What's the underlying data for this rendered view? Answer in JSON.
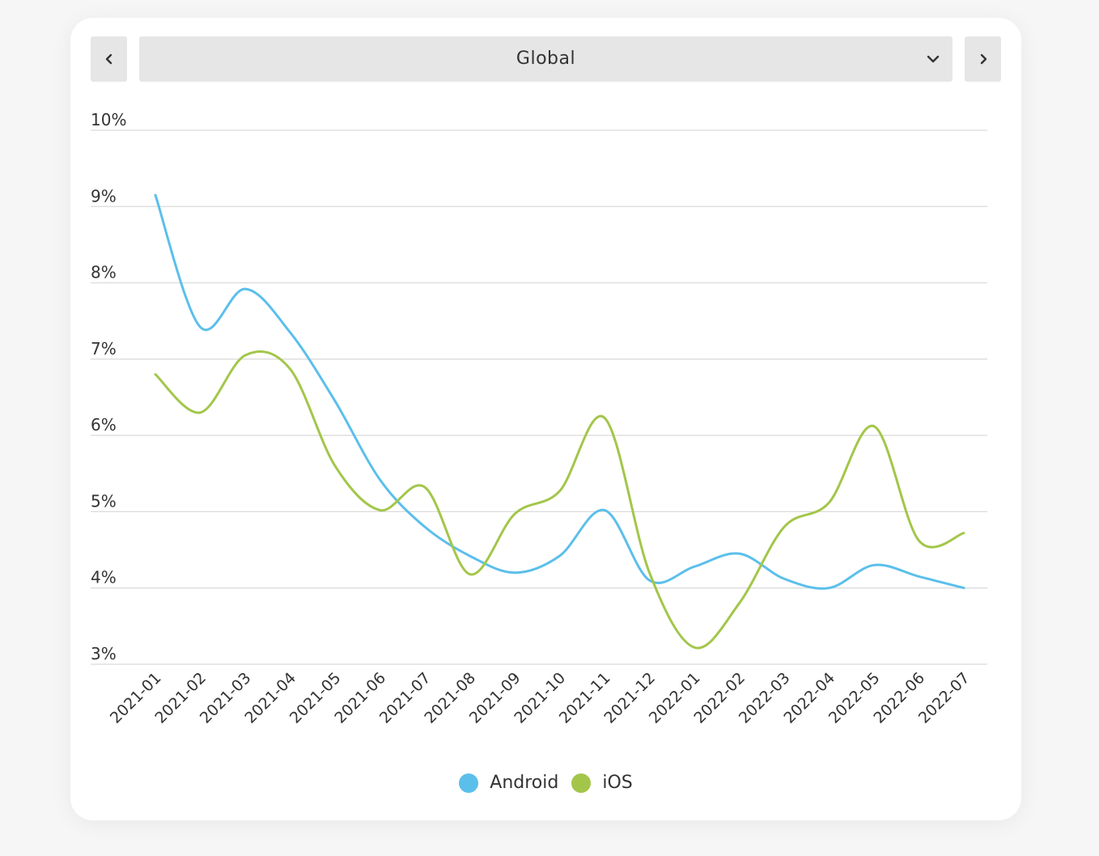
{
  "region_selector": {
    "value": "Global"
  },
  "navigation": {
    "prev_icon": "chevron-left-icon",
    "next_icon": "chevron-right-icon"
  },
  "colors": {
    "android": "#5bbfeb",
    "ios": "#a3c64a",
    "grid": "#d9d9d9"
  },
  "chart_data": {
    "type": "line",
    "title": "",
    "xlabel": "",
    "ylabel": "",
    "ylim": [
      3,
      10
    ],
    "yticks": [
      "3%",
      "4%",
      "5%",
      "6%",
      "7%",
      "8%",
      "9%",
      "10%"
    ],
    "grid": true,
    "legend_position": "bottom-center",
    "categories": [
      "2021-01",
      "2021-02",
      "2021-03",
      "2021-04",
      "2021-05",
      "2021-06",
      "2021-07",
      "2021-08",
      "2021-09",
      "2021-10",
      "2021-11",
      "2021-12",
      "2022-01",
      "2022-02",
      "2022-03",
      "2022-04",
      "2022-05",
      "2022-06",
      "2022-07"
    ],
    "series": [
      {
        "name": "Android",
        "color": "#5bbfeb",
        "values": [
          9.15,
          7.42,
          7.92,
          7.35,
          6.45,
          5.42,
          4.8,
          4.42,
          4.2,
          4.42,
          5.02,
          4.1,
          4.28,
          4.45,
          4.12,
          4.0,
          4.3,
          4.15,
          4.0
        ]
      },
      {
        "name": "iOS",
        "color": "#a3c64a",
        "values": [
          6.8,
          6.3,
          7.05,
          6.87,
          5.6,
          5.02,
          5.32,
          4.18,
          4.97,
          5.27,
          6.23,
          4.2,
          3.22,
          3.8,
          4.8,
          5.12,
          6.12,
          4.62,
          4.72
        ]
      }
    ]
  }
}
